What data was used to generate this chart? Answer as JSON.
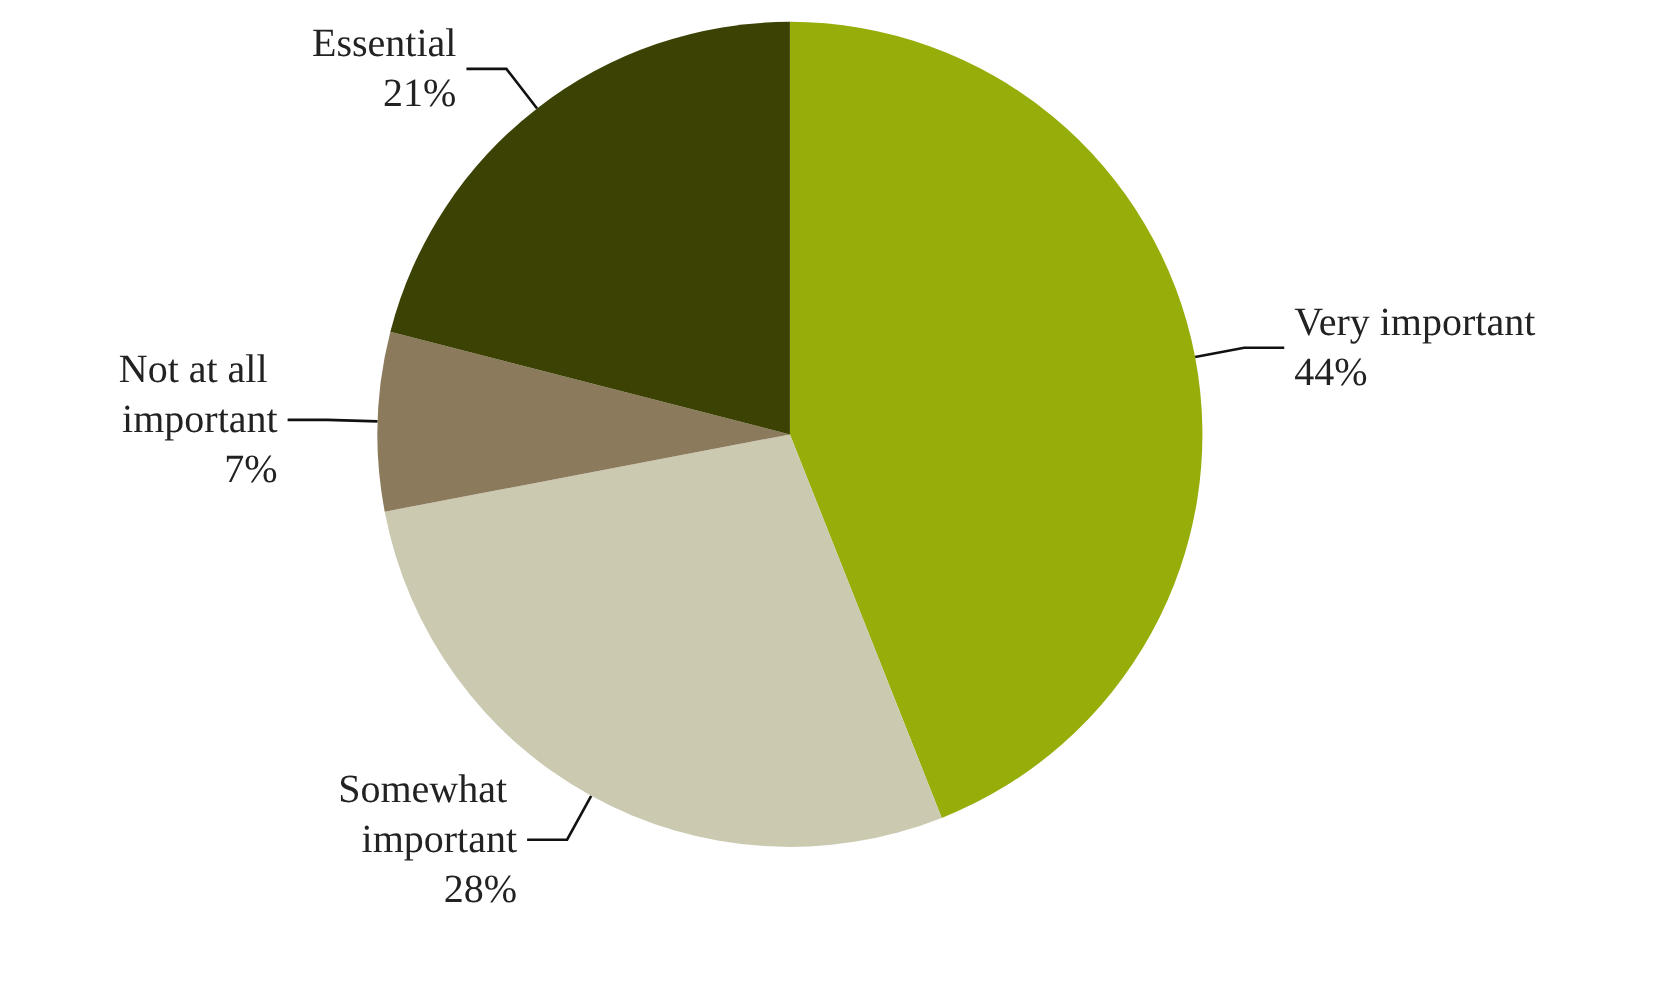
{
  "chart_data": {
    "type": "pie",
    "categories": [
      "Very important",
      "Somewhat important",
      "Not at all important",
      "Essential"
    ],
    "values": [
      44,
      28,
      7,
      21
    ],
    "colors": [
      "#97ad0a",
      "#ccc9b1",
      "#8c7a5d",
      "#3b4203"
    ],
    "value_labels": [
      "44%",
      "28%",
      "7%",
      "21%"
    ],
    "legend": false
  }
}
